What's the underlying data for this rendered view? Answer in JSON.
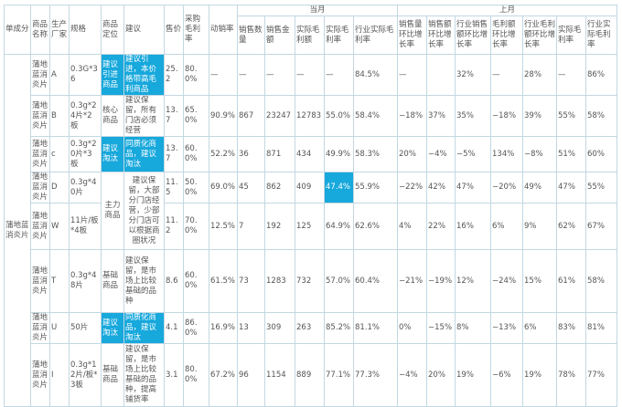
{
  "header": {
    "group_current": "当月",
    "group_previous": "上月",
    "columns": [
      "单成分",
      "商品名称",
      "生产厂家",
      "规格",
      "商品定位",
      "建议",
      "售价",
      "采购毛利率",
      "动销率"
    ],
    "current_columns": [
      "销售数量",
      "销售金额",
      "实际毛利额",
      "实际毛利率",
      "行业实际毛利率"
    ],
    "previous_columns": [
      "销售量环比增长率",
      "销售额环比增长率",
      "行业销售额环比增长率",
      "毛利额环比增长率",
      "行业毛利额环比增长率",
      "实际毛利率",
      "行业实际毛利率"
    ]
  },
  "ingredient": "蒲地蓝消炎片",
  "highlight_color": "#17a8dc",
  "rows": [
    {
      "name": "蒲地蓝消炎片",
      "maker": "A",
      "spec": "0.3G*36",
      "position": "建议引进商品",
      "suggestion": "建议引进，本价格带高毛利商品",
      "price": "25.2",
      "purchase_margin": "80.0%",
      "sell_through": "—",
      "qty": "—",
      "amount": "—",
      "margin_amt": "—",
      "margin_rate": "—",
      "ind_margin_rate": "84.5%",
      "qty_mom": "—",
      "amt_mom": "",
      "ind_amt_mom": "32%",
      "margin_mom": "—",
      "ind_margin_mom": "28%",
      "prev_margin_rate": "—",
      "prev_ind_margin_rate": "86%",
      "hl": [
        "position",
        "suggestion"
      ]
    },
    {
      "name": "蒲地蓝消炎片",
      "maker": "B",
      "spec": "0.3g*24片*2板",
      "position": "核心商品",
      "suggestion": "建议保留，所有门店必须经营",
      "price": "13.7",
      "purchase_margin": "65.0%",
      "sell_through": "90.9%",
      "qty": "867",
      "amount": "23247",
      "margin_amt": "12783",
      "margin_rate": "55.0%",
      "ind_margin_rate": "58.4%",
      "qty_mom": "−18%",
      "amt_mom": "37%",
      "ind_amt_mom": "35%",
      "margin_mom": "−18%",
      "ind_margin_mom": "39%",
      "prev_margin_rate": "55%",
      "prev_ind_margin_rate": "58%",
      "hl": []
    },
    {
      "name": "蒲地蓝消炎片",
      "maker": "c",
      "spec": "0.3g*20片*3板",
      "position": "建议淘汰",
      "suggestion": "同质化商品，建议淘汰",
      "price": "13.7",
      "purchase_margin": "60.0%",
      "sell_through": "52.2%",
      "qty": "36",
      "amount": "871",
      "margin_amt": "434",
      "margin_rate": "49.9%",
      "ind_margin_rate": "58.3%",
      "qty_mom": "20%",
      "amt_mom": "−4%",
      "ind_amt_mom": "−5%",
      "margin_mom": "134%",
      "ind_margin_mom": "−8%",
      "prev_margin_rate": "51%",
      "prev_ind_margin_rate": "60%",
      "hl": [
        "position",
        "suggestion"
      ]
    },
    {
      "name": "蒲地蓝消炎片",
      "maker": "D",
      "spec": "0.3g*40片",
      "position": "主力商品",
      "suggestion": "建议保留，大部分门店经营，少部分门店可以根据商圈状况",
      "span2": true,
      "price": "11.5",
      "purchase_margin": "50.0%",
      "sell_through": "69.0%",
      "qty": "45",
      "amount": "862",
      "margin_amt": "409",
      "margin_rate": "47.4%",
      "ind_margin_rate": "55.9%",
      "qty_mom": "−22%",
      "amt_mom": "42%",
      "ind_amt_mom": "47%",
      "margin_mom": "−20%",
      "ind_margin_mom": "49%",
      "prev_margin_rate": "47%",
      "prev_ind_margin_rate": "55%",
      "hl": [
        "margin_rate"
      ]
    },
    {
      "name": "蒲地蓝消炎片",
      "maker": "W",
      "spec": "11片/板*4板",
      "merged": true,
      "price": "11.2",
      "purchase_margin": "70.0%",
      "sell_through": "12.5%",
      "qty": "7",
      "amount": "192",
      "margin_amt": "125",
      "margin_rate": "64.9%",
      "ind_margin_rate": "62.6%",
      "qty_mom": "4%",
      "amt_mom": "22%",
      "ind_amt_mom": "16%",
      "margin_mom": "6%",
      "ind_margin_mom": "9%",
      "prev_margin_rate": "62%",
      "prev_ind_margin_rate": "67%",
      "hl": []
    },
    {
      "name": "蒲地蓝消炎片",
      "maker": "T",
      "spec": "0.3g*48片",
      "position": "基础商品",
      "suggestion": "建议保留，是市场上比较基础的品种",
      "price": "8.6",
      "purchase_margin": "60.0%",
      "sell_through": "61.5%",
      "qty": "73",
      "amount": "1283",
      "margin_amt": "732",
      "margin_rate": "57.0%",
      "ind_margin_rate": "60.4%",
      "qty_mom": "−21%",
      "amt_mom": "−19%",
      "ind_amt_mom": "12%",
      "margin_mom": "−24%",
      "ind_margin_mom": "15%",
      "prev_margin_rate": "61%",
      "prev_ind_margin_rate": "58%",
      "hl": []
    },
    {
      "name": "蒲地蓝消炎片",
      "maker": "U",
      "spec": "50片",
      "position": "建议淘汰",
      "suggestion": "同质化商品，建议淘汰",
      "price": "4.1",
      "purchase_margin": "86.0%",
      "sell_through": "16.9%",
      "qty": "13",
      "amount": "309",
      "margin_amt": "263",
      "margin_rate": "85.2%",
      "ind_margin_rate": "81.1%",
      "qty_mom": "0%",
      "amt_mom": "−15%",
      "ind_amt_mom": "8%",
      "margin_mom": "−13%",
      "ind_margin_mom": "6%",
      "prev_margin_rate": "83%",
      "prev_ind_margin_rate": "81%",
      "hl": [
        "position",
        "suggestion"
      ]
    },
    {
      "name": "蒲地蓝消炎片",
      "maker": "I",
      "spec": "0.3g*12片/板*3板",
      "position": "基础商品",
      "suggestion": "建议保留，是市场上比较基础的品种，提高铺货率",
      "price": "3.1",
      "purchase_margin": "80.0%",
      "sell_through": "67.2%",
      "qty": "96",
      "amount": "1154",
      "margin_amt": "889",
      "margin_rate": "77.1%",
      "ind_margin_rate": "77.3%",
      "qty_mom": "−4%",
      "amt_mom": "20%",
      "ind_amt_mom": "19%",
      "margin_mom": "−6%",
      "ind_margin_mom": "19%",
      "prev_margin_rate": "78%",
      "prev_ind_margin_rate": "77%",
      "hl": []
    }
  ]
}
